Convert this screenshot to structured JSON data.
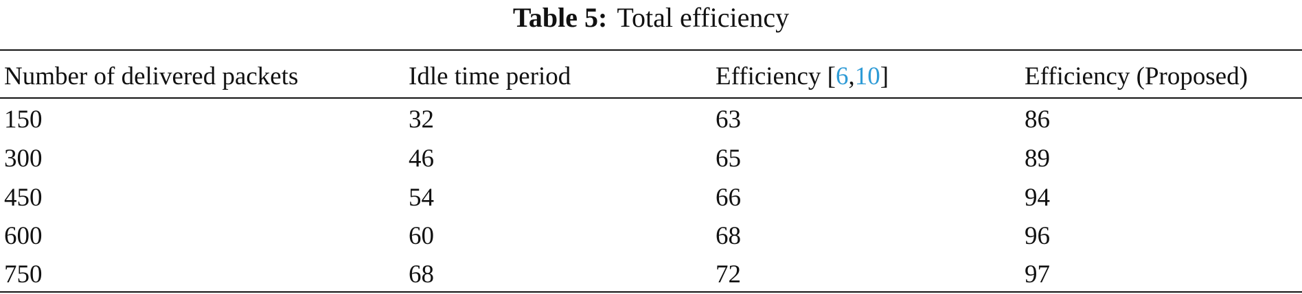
{
  "caption": {
    "label": "Table 5:",
    "title": "Total efficiency"
  },
  "table": {
    "header": [
      "Number of delivered packets",
      "Idle time period",
      [
        "Efficiency [",
        "6",
        ",",
        "10",
        "]"
      ],
      "Efficiency (Proposed)"
    ],
    "rows": [
      [
        150,
        32,
        63,
        86
      ],
      [
        300,
        46,
        65,
        89
      ],
      [
        450,
        54,
        66,
        94
      ],
      [
        600,
        60,
        68,
        96
      ],
      [
        750,
        68,
        72,
        97
      ]
    ]
  }
}
